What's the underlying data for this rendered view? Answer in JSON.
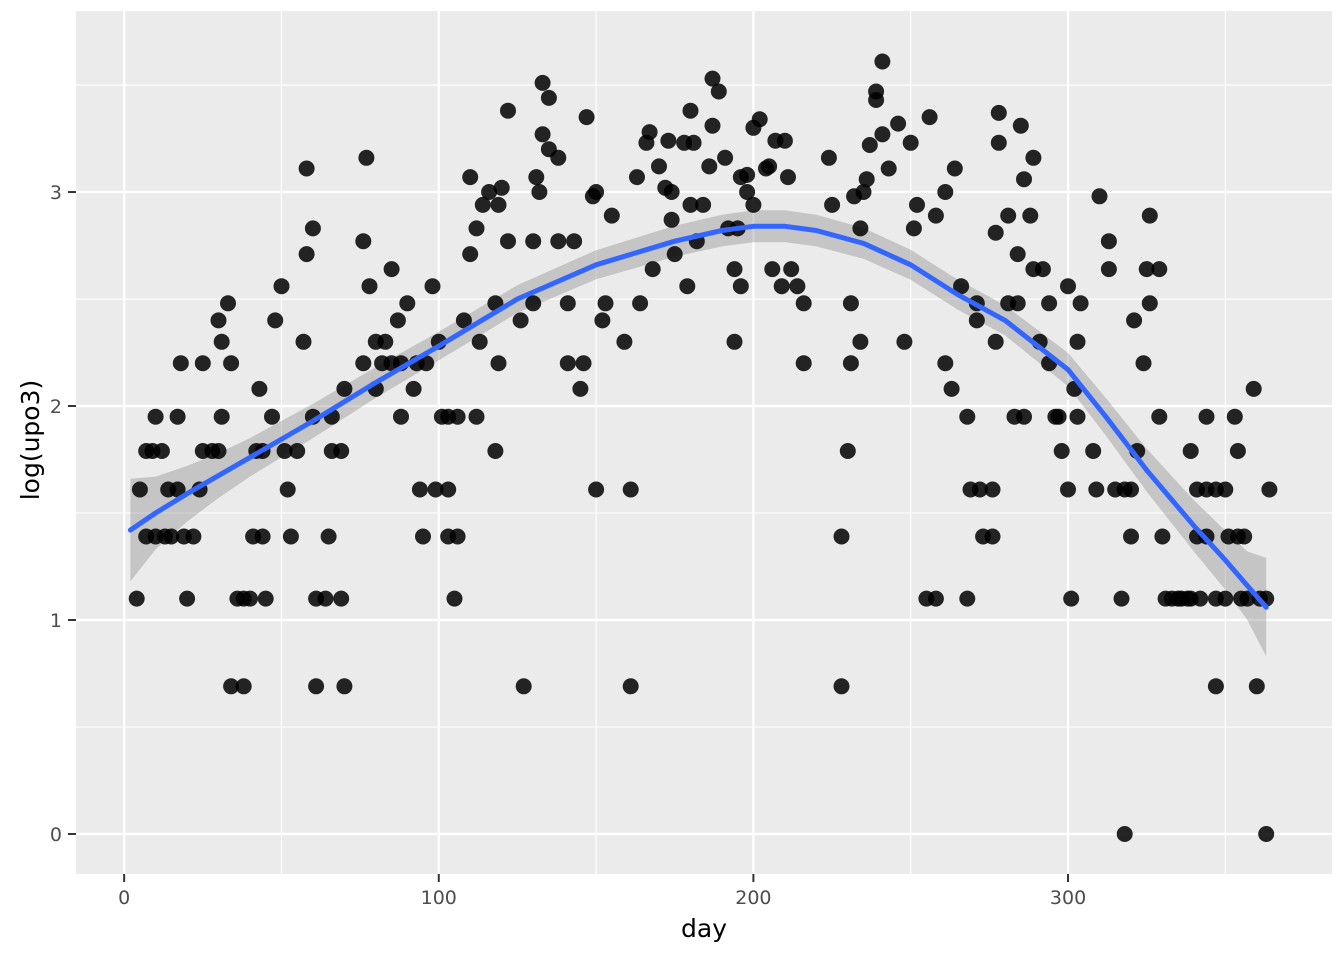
{
  "chart_data": {
    "type": "scatter",
    "title": "",
    "xlabel": "day",
    "ylabel": "log(upo3)",
    "legend": "none",
    "grid": "on",
    "panel_background": "#ebebeb",
    "colors": {
      "point": "#000000",
      "smooth_line": "#3366FF",
      "ribbon": "#7a7a7a",
      "gridline": "#ffffff",
      "tick_label": "#4d4d4d",
      "tick_mark": "#333333",
      "axis_title": "#000000"
    },
    "axes": {
      "x": {
        "range": [
          -15.3,
          383.9
        ],
        "ticks": [
          0,
          100,
          200,
          300
        ],
        "tick_labels": [
          "0",
          "100",
          "200",
          "300"
        ],
        "minor_ticks": [
          50,
          150,
          250,
          350
        ]
      },
      "y": {
        "range": [
          -0.187,
          3.846
        ],
        "ticks": [
          0,
          1,
          2,
          3
        ],
        "tick_labels": [
          "0",
          "1",
          "2",
          "3"
        ],
        "minor_ticks": [
          0.5,
          1.5,
          2.5,
          3.5
        ]
      }
    },
    "smooth": [
      [
        2,
        1.42,
        0.24
      ],
      [
        10,
        1.5,
        0.17
      ],
      [
        20,
        1.59,
        0.13
      ],
      [
        30,
        1.675,
        0.105
      ],
      [
        40,
        1.76,
        0.09
      ],
      [
        60,
        1.93,
        0.08
      ],
      [
        80,
        2.11,
        0.072
      ],
      [
        100,
        2.28,
        0.067
      ],
      [
        125,
        2.5,
        0.065
      ],
      [
        150,
        2.66,
        0.068
      ],
      [
        175,
        2.77,
        0.072
      ],
      [
        190,
        2.82,
        0.074
      ],
      [
        200,
        2.84,
        0.075
      ],
      [
        210,
        2.84,
        0.075
      ],
      [
        220,
        2.82,
        0.074
      ],
      [
        235,
        2.76,
        0.072
      ],
      [
        250,
        2.66,
        0.07
      ],
      [
        265,
        2.52,
        0.07
      ],
      [
        280,
        2.4,
        0.07
      ],
      [
        300,
        2.17,
        0.078
      ],
      [
        312,
        1.95,
        0.088
      ],
      [
        325,
        1.7,
        0.1
      ],
      [
        340,
        1.44,
        0.12
      ],
      [
        350,
        1.28,
        0.138
      ],
      [
        357,
        1.16,
        0.16
      ],
      [
        363,
        1.06,
        0.23
      ]
    ],
    "points": [
      [
        318,
        0
      ],
      [
        363,
        0
      ],
      [
        34,
        0.69
      ],
      [
        38,
        0.69
      ],
      [
        61,
        0.69
      ],
      [
        70,
        0.69
      ],
      [
        127,
        0.69
      ],
      [
        161,
        0.69
      ],
      [
        228,
        0.69
      ],
      [
        347,
        0.69
      ],
      [
        360,
        0.69
      ],
      [
        4,
        1.1
      ],
      [
        20,
        1.1
      ],
      [
        36,
        1.1
      ],
      [
        38,
        1.1
      ],
      [
        40,
        1.1
      ],
      [
        45,
        1.1
      ],
      [
        61,
        1.1
      ],
      [
        64,
        1.1
      ],
      [
        69,
        1.1
      ],
      [
        105,
        1.1
      ],
      [
        255,
        1.1
      ],
      [
        258,
        1.1
      ],
      [
        268,
        1.1
      ],
      [
        301,
        1.1
      ],
      [
        317,
        1.1
      ],
      [
        331,
        1.1
      ],
      [
        333,
        1.1
      ],
      [
        335,
        1.1
      ],
      [
        336,
        1.1
      ],
      [
        338,
        1.1
      ],
      [
        339,
        1.1
      ],
      [
        342,
        1.1
      ],
      [
        347,
        1.1
      ],
      [
        350,
        1.1
      ],
      [
        355,
        1.1
      ],
      [
        357,
        1.1
      ],
      [
        361,
        1.1
      ],
      [
        363,
        1.1
      ],
      [
        7,
        1.39
      ],
      [
        10,
        1.39
      ],
      [
        13,
        1.39
      ],
      [
        15,
        1.39
      ],
      [
        19,
        1.39
      ],
      [
        22,
        1.39
      ],
      [
        41,
        1.39
      ],
      [
        44,
        1.39
      ],
      [
        53,
        1.39
      ],
      [
        65,
        1.39
      ],
      [
        95,
        1.39
      ],
      [
        103,
        1.39
      ],
      [
        106,
        1.39
      ],
      [
        228,
        1.39
      ],
      [
        273,
        1.39
      ],
      [
        276,
        1.39
      ],
      [
        320,
        1.39
      ],
      [
        330,
        1.39
      ],
      [
        341,
        1.39
      ],
      [
        344,
        1.39
      ],
      [
        351,
        1.39
      ],
      [
        354,
        1.39
      ],
      [
        356,
        1.39
      ],
      [
        5,
        1.61
      ],
      [
        14,
        1.61
      ],
      [
        17,
        1.61
      ],
      [
        24,
        1.61
      ],
      [
        52,
        1.61
      ],
      [
        94,
        1.61
      ],
      [
        99,
        1.61
      ],
      [
        103,
        1.61
      ],
      [
        150,
        1.61
      ],
      [
        161,
        1.61
      ],
      [
        269,
        1.61
      ],
      [
        272,
        1.61
      ],
      [
        276,
        1.61
      ],
      [
        300,
        1.61
      ],
      [
        309,
        1.61
      ],
      [
        315,
        1.61
      ],
      [
        318,
        1.61
      ],
      [
        320,
        1.61
      ],
      [
        341,
        1.61
      ],
      [
        344,
        1.61
      ],
      [
        347,
        1.61
      ],
      [
        350,
        1.61
      ],
      [
        364,
        1.61
      ],
      [
        7,
        1.79
      ],
      [
        9,
        1.79
      ],
      [
        12,
        1.79
      ],
      [
        25,
        1.79
      ],
      [
        28,
        1.79
      ],
      [
        30,
        1.79
      ],
      [
        42,
        1.79
      ],
      [
        44,
        1.79
      ],
      [
        51,
        1.79
      ],
      [
        55,
        1.79
      ],
      [
        66,
        1.79
      ],
      [
        69,
        1.79
      ],
      [
        118,
        1.79
      ],
      [
        230,
        1.79
      ],
      [
        298,
        1.79
      ],
      [
        308,
        1.79
      ],
      [
        322,
        1.79
      ],
      [
        339,
        1.79
      ],
      [
        354,
        1.79
      ],
      [
        10,
        1.95
      ],
      [
        17,
        1.95
      ],
      [
        31,
        1.95
      ],
      [
        47,
        1.95
      ],
      [
        60,
        1.95
      ],
      [
        66,
        1.95
      ],
      [
        88,
        1.95
      ],
      [
        101,
        1.95
      ],
      [
        103,
        1.95
      ],
      [
        106,
        1.95
      ],
      [
        112,
        1.95
      ],
      [
        268,
        1.95
      ],
      [
        283,
        1.95
      ],
      [
        286,
        1.95
      ],
      [
        296,
        1.95
      ],
      [
        297,
        1.95
      ],
      [
        303,
        1.95
      ],
      [
        329,
        1.95
      ],
      [
        344,
        1.95
      ],
      [
        353,
        1.95
      ],
      [
        43,
        2.08
      ],
      [
        70,
        2.08
      ],
      [
        80,
        2.08
      ],
      [
        92,
        2.08
      ],
      [
        145,
        2.08
      ],
      [
        263,
        2.08
      ],
      [
        302,
        2.08
      ],
      [
        359,
        2.08
      ],
      [
        18,
        2.2
      ],
      [
        25,
        2.2
      ],
      [
        34,
        2.2
      ],
      [
        76,
        2.2
      ],
      [
        82,
        2.2
      ],
      [
        85,
        2.2
      ],
      [
        88,
        2.2
      ],
      [
        93,
        2.2
      ],
      [
        96,
        2.2
      ],
      [
        119,
        2.2
      ],
      [
        141,
        2.2
      ],
      [
        146,
        2.2
      ],
      [
        216,
        2.2
      ],
      [
        231,
        2.2
      ],
      [
        261,
        2.2
      ],
      [
        294,
        2.2
      ],
      [
        324,
        2.2
      ],
      [
        31,
        2.3
      ],
      [
        57,
        2.3
      ],
      [
        80,
        2.3
      ],
      [
        83,
        2.3
      ],
      [
        100,
        2.3
      ],
      [
        113,
        2.3
      ],
      [
        159,
        2.3
      ],
      [
        194,
        2.3
      ],
      [
        234,
        2.3
      ],
      [
        248,
        2.3
      ],
      [
        277,
        2.3
      ],
      [
        291,
        2.3
      ],
      [
        303,
        2.3
      ],
      [
        30,
        2.4
      ],
      [
        48,
        2.4
      ],
      [
        87,
        2.4
      ],
      [
        108,
        2.4
      ],
      [
        126,
        2.4
      ],
      [
        152,
        2.4
      ],
      [
        271,
        2.4
      ],
      [
        321,
        2.4
      ],
      [
        33,
        2.48
      ],
      [
        90,
        2.48
      ],
      [
        118,
        2.48
      ],
      [
        130,
        2.48
      ],
      [
        141,
        2.48
      ],
      [
        153,
        2.48
      ],
      [
        164,
        2.48
      ],
      [
        216,
        2.48
      ],
      [
        231,
        2.48
      ],
      [
        271,
        2.48
      ],
      [
        281,
        2.48
      ],
      [
        284,
        2.48
      ],
      [
        294,
        2.48
      ],
      [
        304,
        2.48
      ],
      [
        326,
        2.48
      ],
      [
        50,
        2.56
      ],
      [
        78,
        2.56
      ],
      [
        98,
        2.56
      ],
      [
        179,
        2.56
      ],
      [
        196,
        2.56
      ],
      [
        209,
        2.56
      ],
      [
        214,
        2.56
      ],
      [
        266,
        2.56
      ],
      [
        300,
        2.56
      ],
      [
        85,
        2.64
      ],
      [
        168,
        2.64
      ],
      [
        194,
        2.64
      ],
      [
        206,
        2.64
      ],
      [
        212,
        2.64
      ],
      [
        289,
        2.64
      ],
      [
        292,
        2.64
      ],
      [
        313,
        2.64
      ],
      [
        325,
        2.64
      ],
      [
        329,
        2.64
      ],
      [
        58,
        2.71
      ],
      [
        110,
        2.71
      ],
      [
        175,
        2.71
      ],
      [
        284,
        2.71
      ],
      [
        76,
        2.77
      ],
      [
        122,
        2.77
      ],
      [
        130,
        2.77
      ],
      [
        138,
        2.77
      ],
      [
        143,
        2.77
      ],
      [
        182,
        2.77
      ],
      [
        277,
        2.81
      ],
      [
        313,
        2.77
      ],
      [
        60,
        2.83
      ],
      [
        112,
        2.83
      ],
      [
        192,
        2.83
      ],
      [
        195,
        2.83
      ],
      [
        234,
        2.83
      ],
      [
        251,
        2.83
      ],
      [
        155,
        2.89
      ],
      [
        174,
        2.87
      ],
      [
        258,
        2.89
      ],
      [
        281,
        2.89
      ],
      [
        288,
        2.89
      ],
      [
        326,
        2.89
      ],
      [
        114,
        2.94
      ],
      [
        119,
        2.94
      ],
      [
        180,
        2.94
      ],
      [
        184,
        2.94
      ],
      [
        200,
        2.94
      ],
      [
        225,
        2.94
      ],
      [
        252,
        2.94
      ],
      [
        116,
        3.0
      ],
      [
        132,
        3.0
      ],
      [
        149,
        2.98
      ],
      [
        150,
        3.0
      ],
      [
        174,
        3.0
      ],
      [
        198,
        3.0
      ],
      [
        232,
        2.98
      ],
      [
        235,
        3.0
      ],
      [
        261,
        3.0
      ],
      [
        310,
        2.98
      ],
      [
        58,
        3.11
      ],
      [
        77,
        3.16
      ],
      [
        110,
        3.07
      ],
      [
        120,
        3.02
      ],
      [
        122,
        3.38
      ],
      [
        131,
        3.07
      ],
      [
        133,
        3.27
      ],
      [
        133,
        3.51
      ],
      [
        135,
        3.44
      ],
      [
        135,
        3.2
      ],
      [
        138,
        3.16
      ],
      [
        147,
        3.35
      ],
      [
        163,
        3.07
      ],
      [
        166,
        3.23
      ],
      [
        167,
        3.28
      ],
      [
        170,
        3.12
      ],
      [
        172,
        3.02
      ],
      [
        173,
        3.24
      ],
      [
        178,
        3.23
      ],
      [
        181,
        3.23
      ],
      [
        186,
        3.12
      ],
      [
        187,
        3.31
      ],
      [
        187,
        3.53
      ],
      [
        189,
        3.47
      ],
      [
        191,
        3.16
      ],
      [
        180,
        3.38
      ],
      [
        196,
        3.07
      ],
      [
        198,
        3.08
      ],
      [
        200,
        3.3
      ],
      [
        202,
        3.34
      ],
      [
        204,
        3.11
      ],
      [
        205,
        3.12
      ],
      [
        207,
        3.24
      ],
      [
        210,
        3.24
      ],
      [
        211,
        3.07
      ],
      [
        224,
        3.16
      ],
      [
        236,
        3.06
      ],
      [
        237,
        3.22
      ],
      [
        239,
        3.43
      ],
      [
        239,
        3.47
      ],
      [
        241,
        3.61
      ],
      [
        241,
        3.27
      ],
      [
        243,
        3.11
      ],
      [
        246,
        3.32
      ],
      [
        250,
        3.23
      ],
      [
        256,
        3.35
      ],
      [
        264,
        3.11
      ],
      [
        278,
        3.37
      ],
      [
        278,
        3.23
      ],
      [
        285,
        3.31
      ],
      [
        286,
        3.06
      ],
      [
        289,
        3.16
      ]
    ]
  }
}
